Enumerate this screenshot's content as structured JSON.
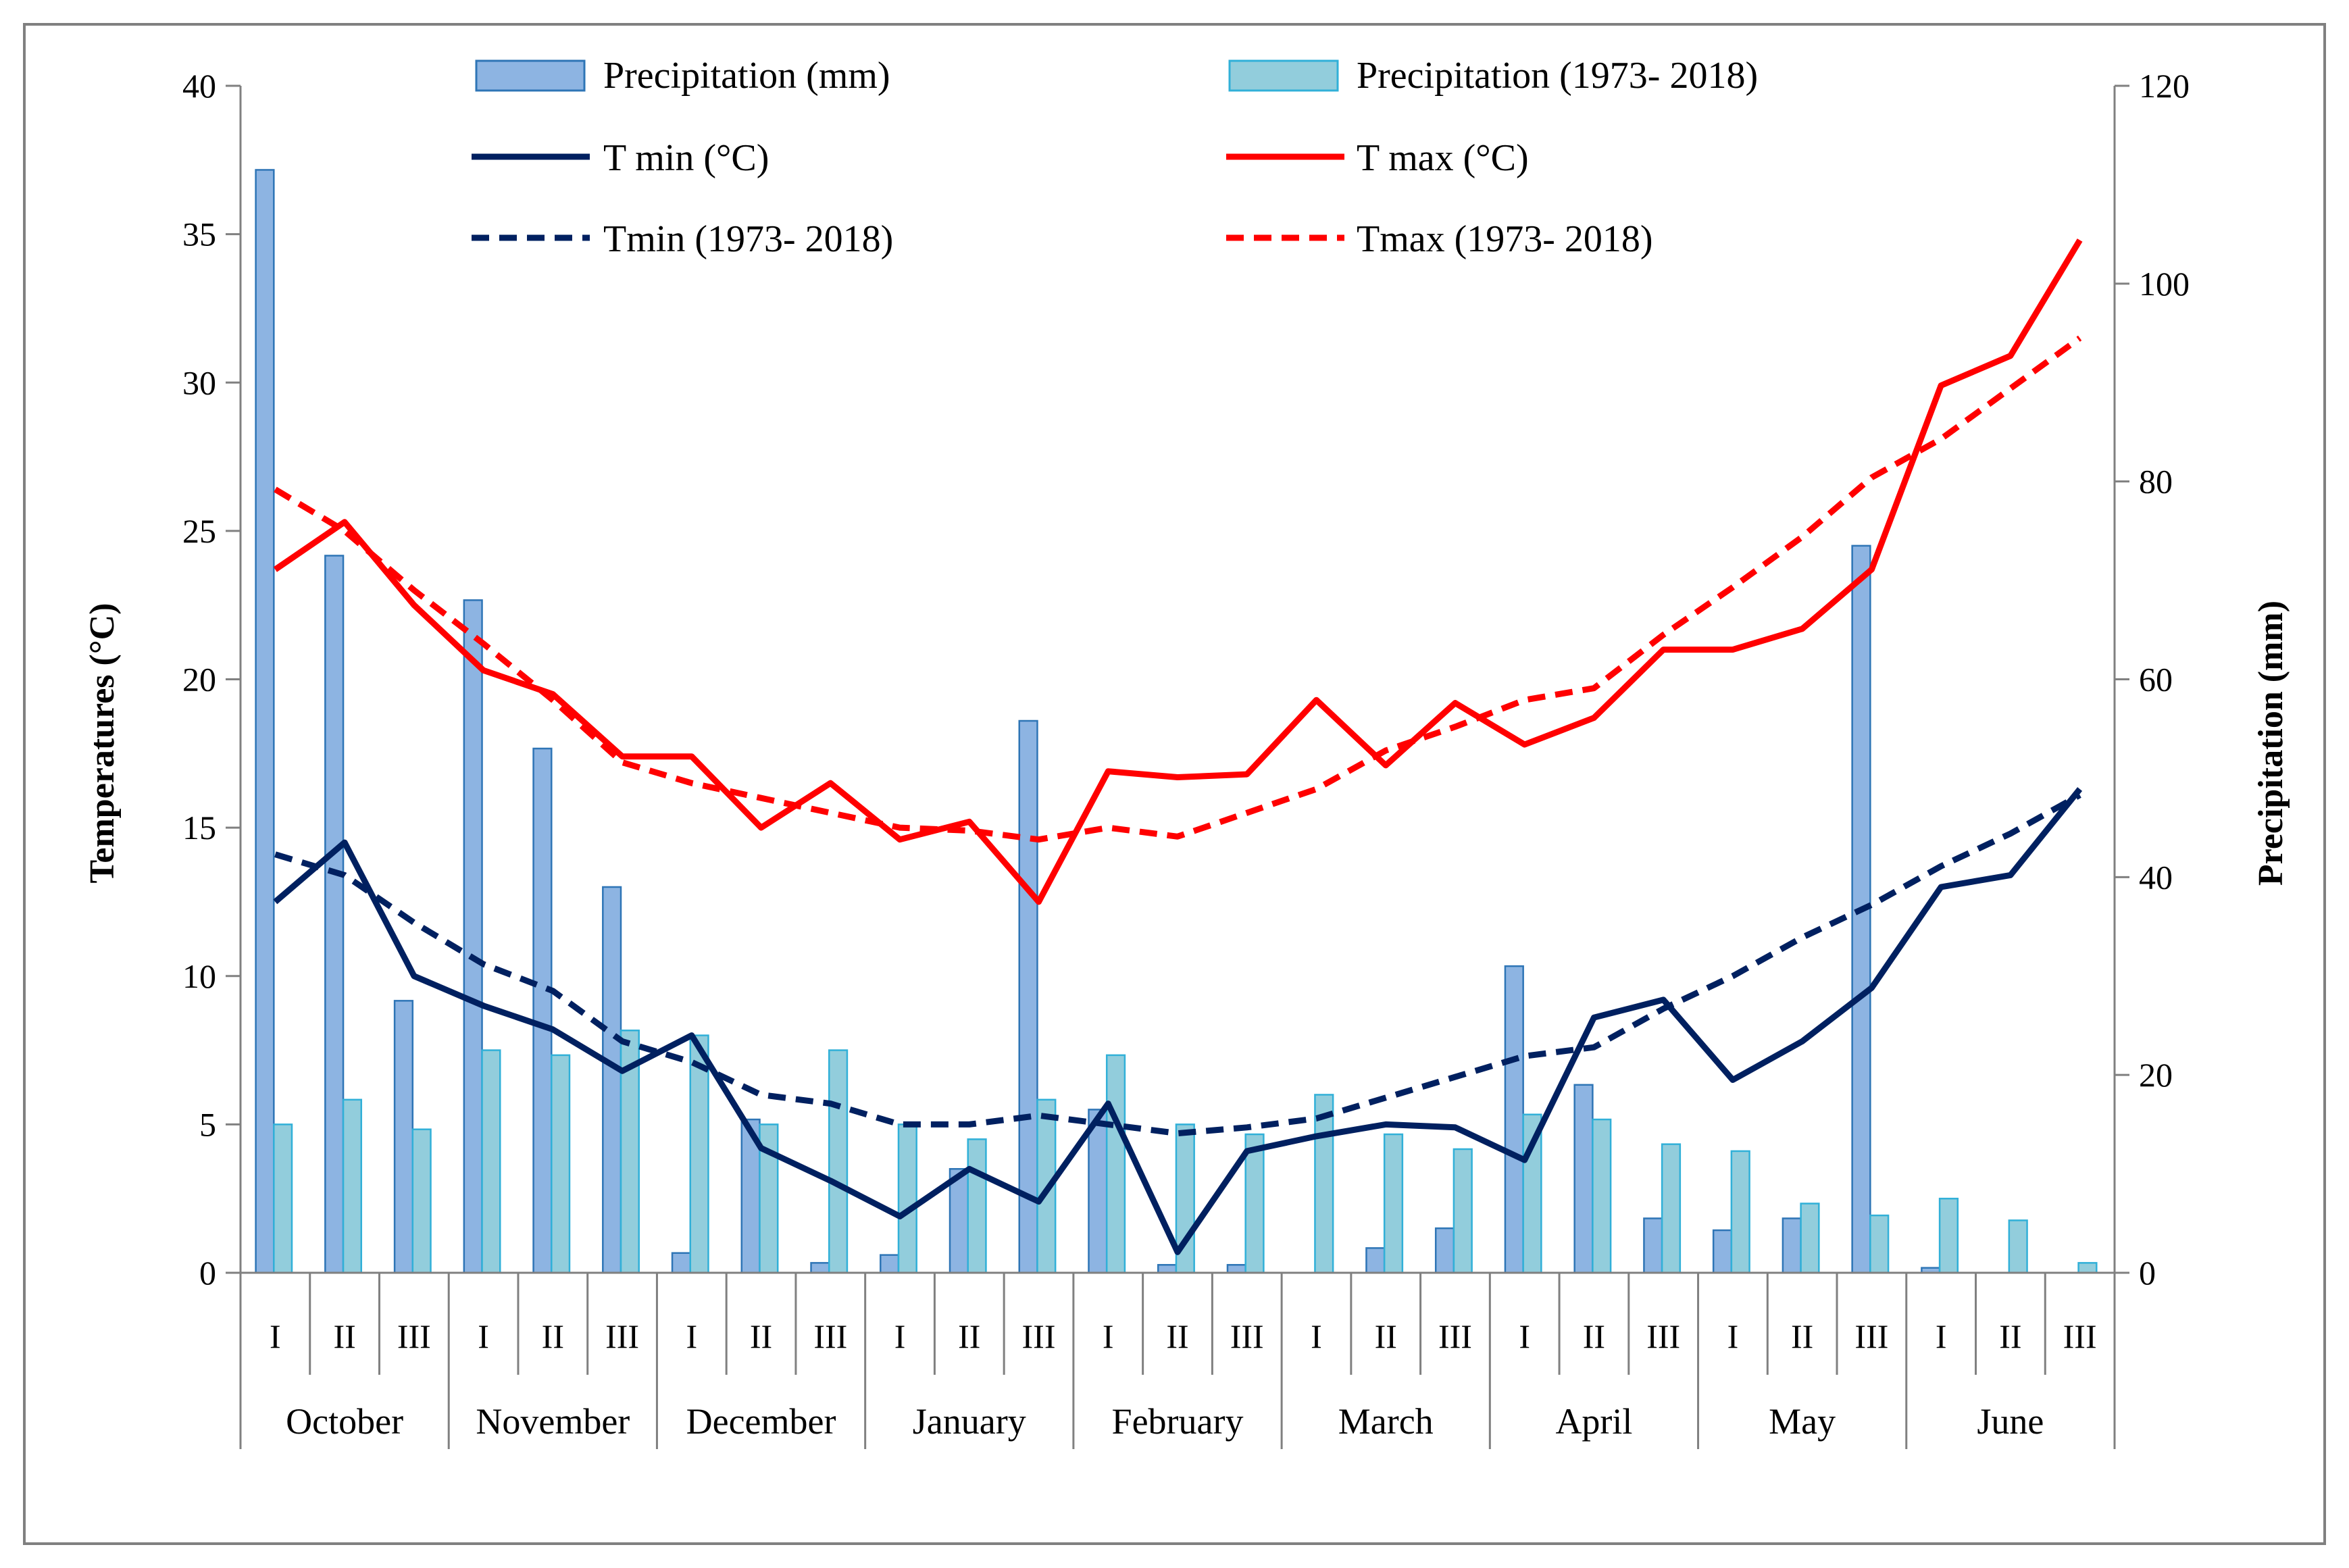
{
  "chart_data": {
    "type": "bar+line",
    "title": "",
    "categories": [
      "I",
      "II",
      "III",
      "I",
      "II",
      "III",
      "I",
      "II",
      "III",
      "I",
      "II",
      "III",
      "I",
      "II",
      "III",
      "I",
      "II",
      "III",
      "I",
      "II",
      "III",
      "I",
      "II",
      "III",
      "I",
      "II",
      "III"
    ],
    "months": [
      "October",
      "November",
      "December",
      "January",
      "February",
      "March",
      "April",
      "May",
      "June"
    ],
    "left_axis": {
      "label": "Temperatures (°C)",
      "ylim": [
        0,
        40
      ],
      "ticks": [
        "0",
        "5",
        "10",
        "15",
        "20",
        "25",
        "30",
        "35",
        "40"
      ]
    },
    "right_axis": {
      "label": "Precipitation (mm)",
      "ylim": [
        0,
        120
      ],
      "ticks": [
        "0",
        "20",
        "40",
        "60",
        "80",
        "100",
        "120"
      ]
    },
    "series": [
      {
        "name": "Precipitation (mm)",
        "kind": "bar",
        "axis": "right",
        "color": "#8DB4E2",
        "edge": "#2E75B6",
        "values": [
          111.5,
          72.5,
          27.5,
          68,
          53,
          39,
          2,
          15.5,
          1,
          1.8,
          10.5,
          55.8,
          16.5,
          0.8,
          0.8,
          0,
          2.5,
          4.5,
          31,
          19,
          5.5,
          4.3,
          5.5,
          73.5,
          0.5,
          0,
          0
        ]
      },
      {
        "name": "Precipitation (1973- 2018)",
        "kind": "bar",
        "axis": "right",
        "color": "#92CDDC",
        "edge": "#31B0D8",
        "values": [
          15,
          17.5,
          14.5,
          22.5,
          22,
          24.5,
          24,
          15,
          22.5,
          15,
          13.5,
          17.5,
          22,
          15,
          14,
          18,
          14,
          12.5,
          16,
          15.5,
          13,
          12.3,
          7,
          5.8,
          7.5,
          5.3,
          1
        ]
      },
      {
        "name": "T min (°C)",
        "kind": "line",
        "axis": "left",
        "color": "#002060",
        "dash": false,
        "values": [
          12.5,
          14.5,
          10,
          9,
          8.2,
          6.8,
          8,
          4.2,
          3.1,
          1.9,
          3.5,
          2.4,
          5.7,
          0.7,
          4.1,
          4.6,
          5,
          4.9,
          3.8,
          8.6,
          9.2,
          6.5,
          7.8,
          9.6,
          13,
          13.4,
          16.3
        ]
      },
      {
        "name": "T max (°C)",
        "kind": "line",
        "axis": "left",
        "color": "#FF0000",
        "dash": false,
        "values": [
          23.7,
          25.3,
          22.5,
          20.3,
          19.5,
          17.4,
          17.4,
          15,
          16.5,
          14.6,
          15.2,
          12.5,
          16.9,
          16.7,
          16.8,
          19.3,
          17.1,
          19.2,
          17.8,
          18.7,
          21,
          21,
          21.7,
          23.7,
          29.9,
          30.9,
          34.8
        ]
      },
      {
        "name": "Tmin (1973- 2018)",
        "kind": "line",
        "axis": "left",
        "color": "#002060",
        "dash": true,
        "values": [
          14.1,
          13.4,
          11.8,
          10.4,
          9.5,
          7.8,
          7.1,
          6,
          5.7,
          5,
          5,
          5.3,
          5,
          4.7,
          4.9,
          5.2,
          5.9,
          6.6,
          7.3,
          7.6,
          8.9,
          10,
          11.3,
          12.4,
          13.7,
          14.8,
          16.1
        ]
      },
      {
        "name": "Tmax (1973- 2018)",
        "kind": "line",
        "axis": "left",
        "color": "#FF0000",
        "dash": true,
        "values": [
          26.4,
          25,
          23,
          21.2,
          19.3,
          17.2,
          16.5,
          16,
          15.5,
          15,
          14.9,
          14.6,
          15,
          14.7,
          15.5,
          16.3,
          17.6,
          18.4,
          19.3,
          19.7,
          21.5,
          23.1,
          24.8,
          26.8,
          28.1,
          29.8,
          31.5
        ]
      }
    ]
  }
}
